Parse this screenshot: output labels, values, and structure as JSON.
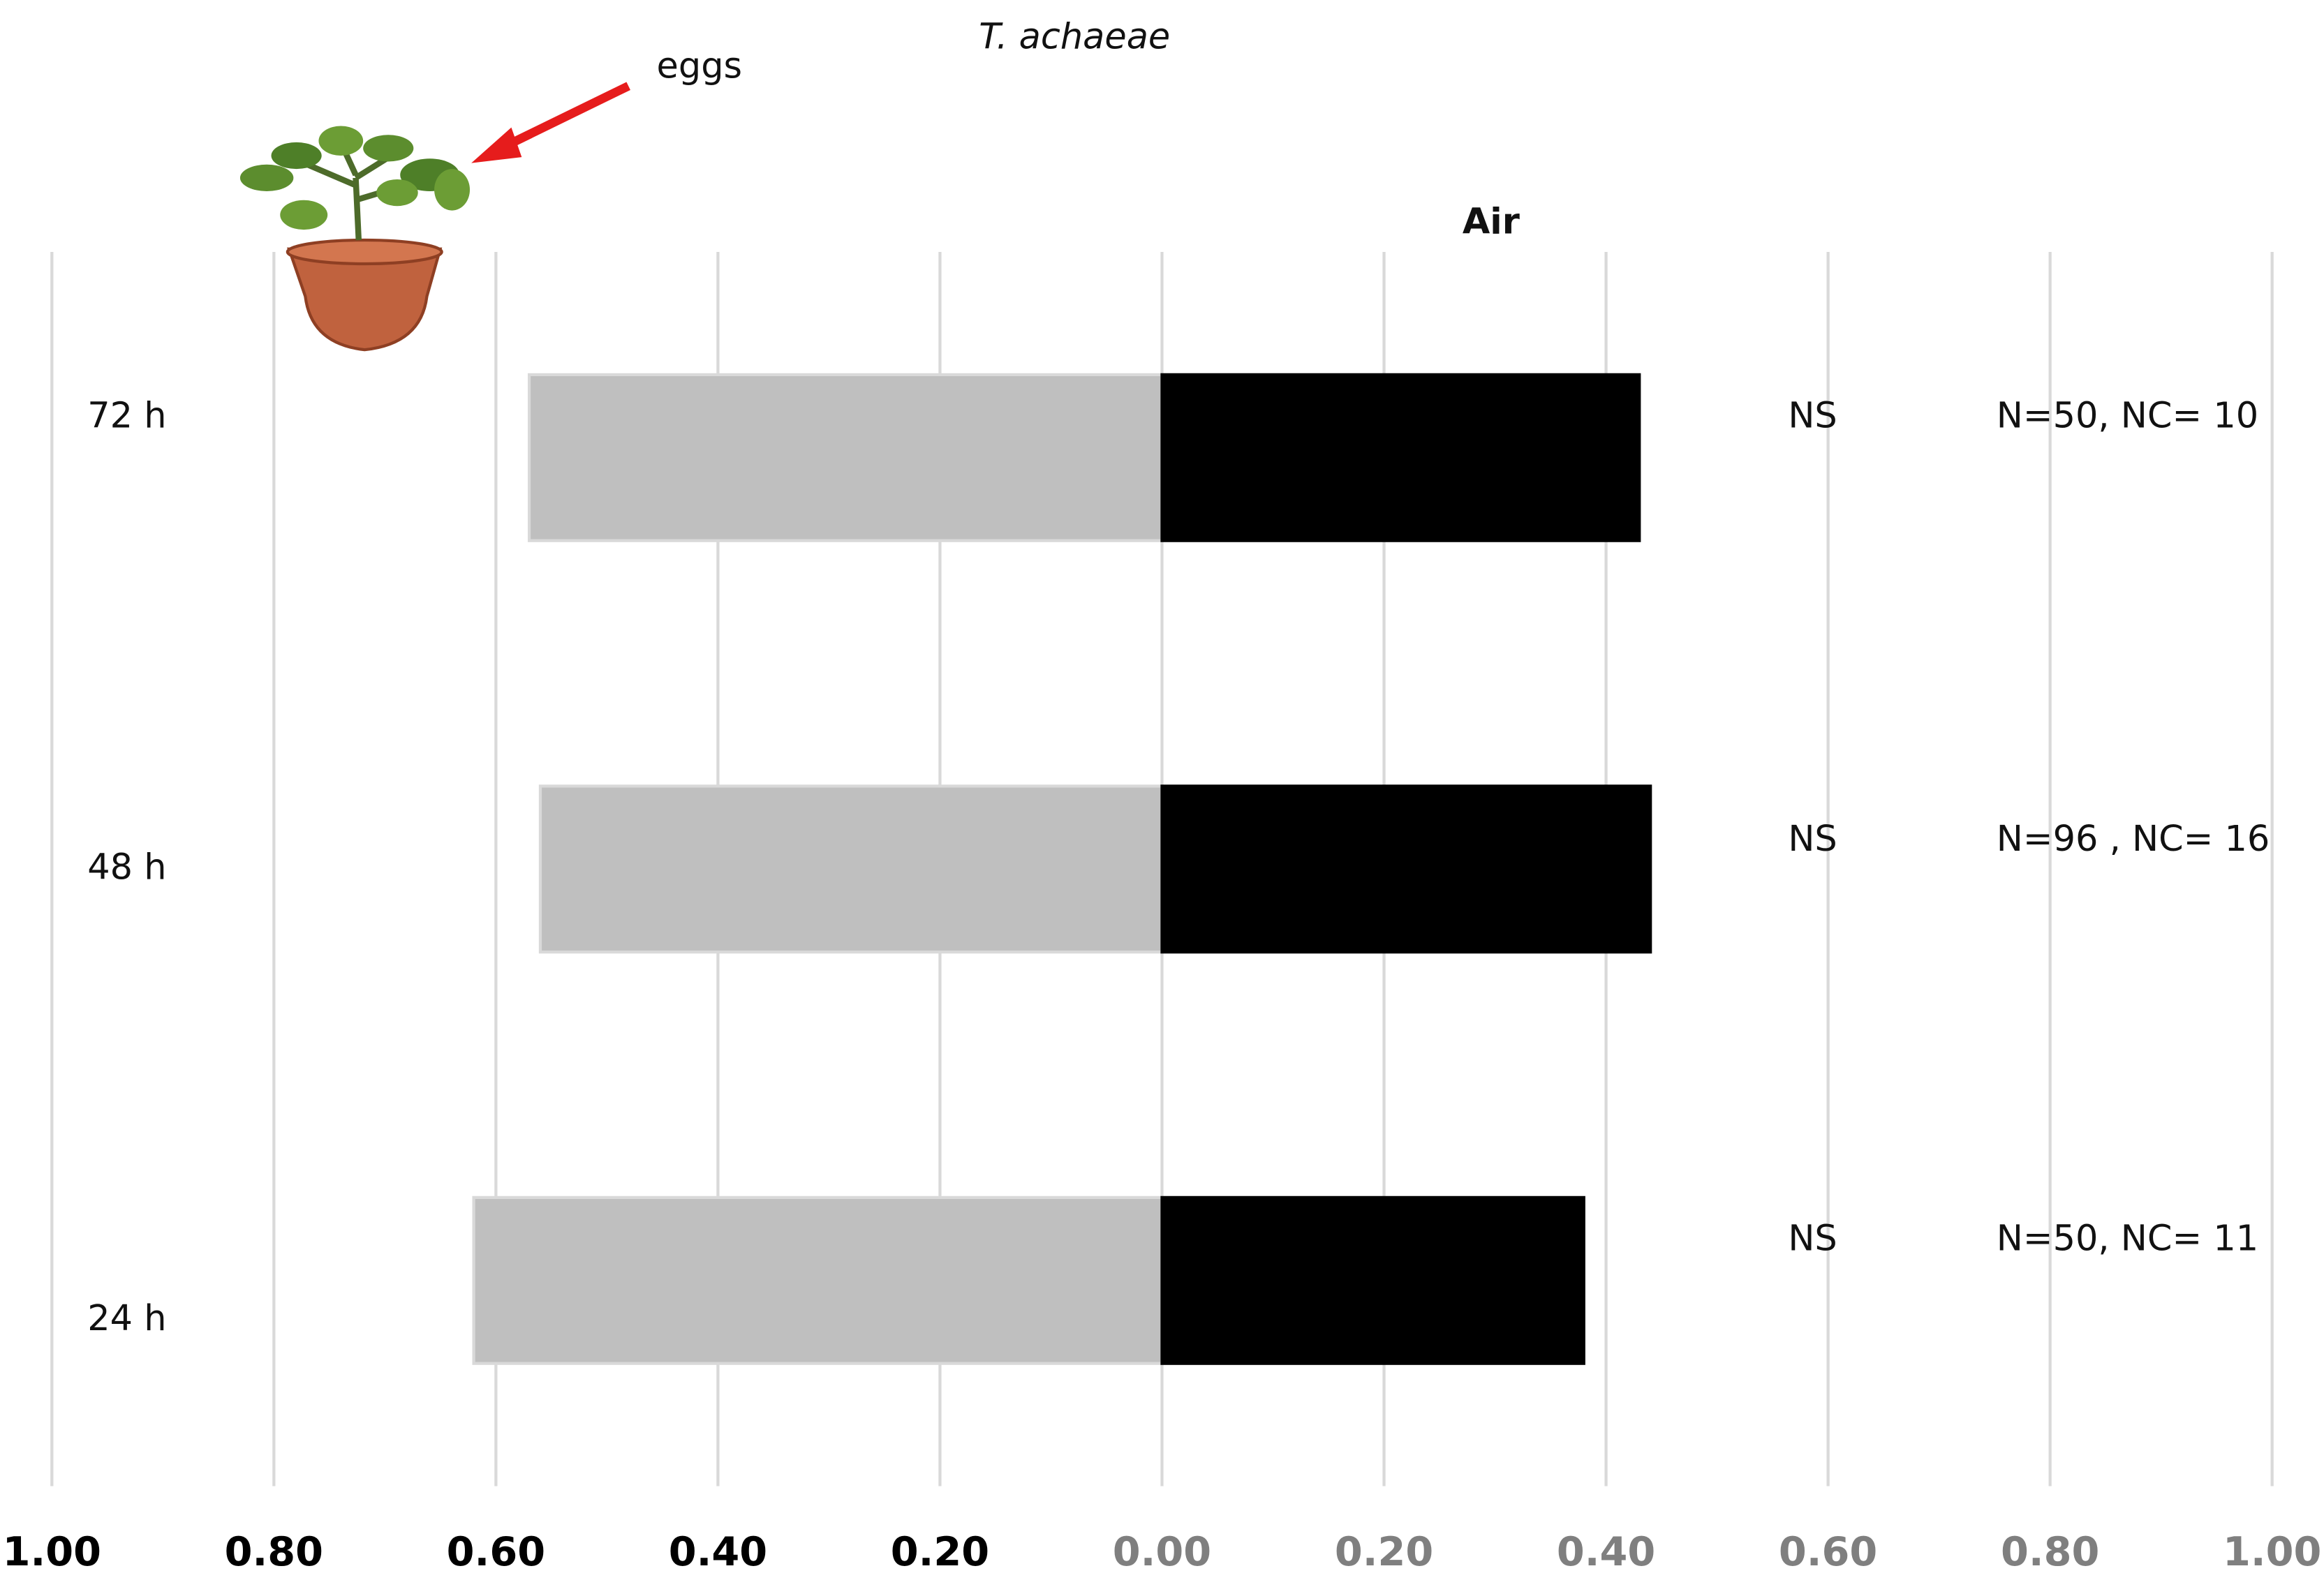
{
  "chart_data": {
    "type": "diverging-bar",
    "title": "T. achaeae",
    "annotation": "eggs",
    "categories": [
      "72 h",
      "48 h",
      "24 h"
    ],
    "series": [
      {
        "color": "#bfbfbf",
        "values": [
          -0.57,
          -0.56,
          -0.62
        ]
      },
      {
        "name": "Air",
        "color": "#000000",
        "values": [
          0.43,
          0.44,
          0.38
        ]
      }
    ],
    "significance": [
      "NS",
      "NS",
      "NS"
    ],
    "sample_sizes": [
      "N=50, NC= 10",
      "N=96 , NC= 16",
      "N=50, NC= 11"
    ],
    "xlim": [
      -1,
      1
    ],
    "xticks": [
      {
        "value": -1,
        "label": "1.00"
      },
      {
        "value": -0.8,
        "label": "0.80"
      },
      {
        "value": -0.6,
        "label": "0.60"
      },
      {
        "value": -0.4,
        "label": "0.40"
      },
      {
        "value": -0.2,
        "label": "0.20"
      },
      {
        "value": 0,
        "label": "0.00"
      },
      {
        "value": 0.2,
        "label": "0.20"
      },
      {
        "value": 0.4,
        "label": "0.40"
      },
      {
        "value": 0.6,
        "label": "0.60"
      },
      {
        "value": 0.8,
        "label": "0.80"
      },
      {
        "value": 1,
        "label": "1.00"
      }
    ],
    "grid": true
  }
}
